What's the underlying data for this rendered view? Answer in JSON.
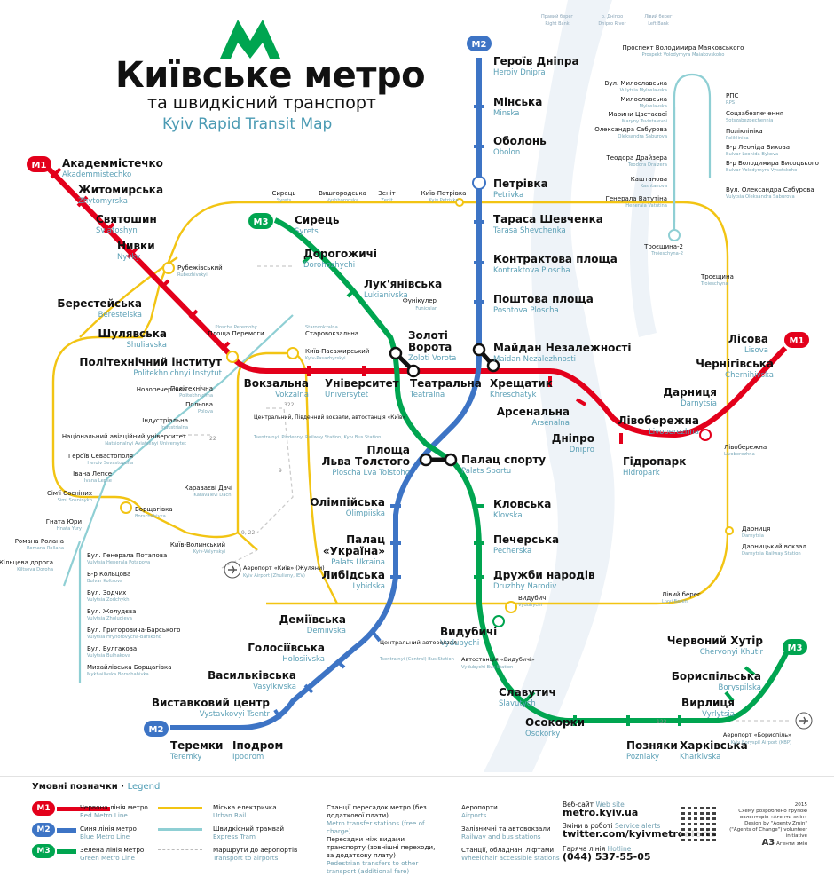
{
  "title": {
    "main": "Київське метро",
    "sub": "та швидкісний транспорт",
    "en": "Kyiv Rapid Transit Map"
  },
  "river": {
    "right_bank": "Правий берег",
    "right_bank_en": "Right Bank",
    "dnipro": "р. Дніпро",
    "dnipro_en": "Dnipro River",
    "left_bank": "Лівий берег",
    "left_bank_en": "Left Bank"
  },
  "colors": {
    "red": "#e3001b",
    "blue": "#3d74c5",
    "green": "#00a550",
    "yellow": "#f2c413",
    "tram": "#8fcfd4",
    "grey": "#bdbdbd"
  },
  "lines": {
    "m1": {
      "badge": "M1"
    },
    "m2": {
      "badge": "M2"
    },
    "m3": {
      "badge": "M3"
    }
  },
  "m1_stations": [
    {
      "ua": "Академмістечко",
      "en": "Akademmistechko"
    },
    {
      "ua": "Житомирська",
      "en": "Zhytomyrska"
    },
    {
      "ua": "Святошин",
      "en": "Sviatoshyn"
    },
    {
      "ua": "Нивки",
      "en": "Nyvky"
    },
    {
      "ua": "Берестейська",
      "en": "Beresteiska"
    },
    {
      "ua": "Шулявська",
      "en": "Shuliavska"
    },
    {
      "ua": "Політехнічний інститут",
      "en": "Politekhnichnyi Instytut"
    },
    {
      "ua": "Вокзальна",
      "en": "Vokzalna"
    },
    {
      "ua": "Університет",
      "en": "Universytet"
    },
    {
      "ua": "Театральна",
      "en": "Teatralna"
    },
    {
      "ua": "Хрещатик",
      "en": "Khreschatyk"
    },
    {
      "ua": "Арсенальна",
      "en": "Arsenalna"
    },
    {
      "ua": "Дніпро",
      "en": "Dnipro"
    },
    {
      "ua": "Гідропарк",
      "en": "Hidropark"
    },
    {
      "ua": "Лівобережна",
      "en": "Livoberezhna"
    },
    {
      "ua": "Дарниця",
      "en": "Darnytsia"
    },
    {
      "ua": "Чернігівська",
      "en": "Chernihivska"
    },
    {
      "ua": "Лісова",
      "en": "Lisova"
    }
  ],
  "m2_stations": [
    {
      "ua": "Героїв Дніпра",
      "en": "Heroiv Dnipra"
    },
    {
      "ua": "Мінська",
      "en": "Minska"
    },
    {
      "ua": "Оболонь",
      "en": "Obolon"
    },
    {
      "ua": "Петрівка",
      "en": "Petrivka"
    },
    {
      "ua": "Тараса Шевченка",
      "en": "Tarasa Shevchenka"
    },
    {
      "ua": "Контрактова площа",
      "en": "Kontraktova Ploscha"
    },
    {
      "ua": "Поштова площа",
      "en": "Poshtova Ploscha"
    },
    {
      "ua": "Майдан Незалежності",
      "en": "Maidan Nezalezhnosti"
    },
    {
      "ua": "Площа",
      "ua2": "Льва Толстого",
      "en": "Ploscha Lva Tolstoho"
    },
    {
      "ua": "Олімпійська",
      "en": "Olimpiiska"
    },
    {
      "ua": "Палац",
      "ua2": "«Україна»",
      "en": "Palats Ukraina"
    },
    {
      "ua": "Либідська",
      "en": "Lybidska"
    },
    {
      "ua": "Деміївська",
      "en": "Demiivska"
    },
    {
      "ua": "Голосіївська",
      "en": "Holosiivska"
    },
    {
      "ua": "Васильківська",
      "en": "Vasylkivska"
    },
    {
      "ua": "Виставковий центр",
      "en": "Vystavkovyi Tsentr"
    },
    {
      "ua": "Іподром",
      "en": "Ipodrom"
    },
    {
      "ua": "Теремки",
      "en": "Teremky"
    }
  ],
  "m3_stations": [
    {
      "ua": "Сирець",
      "en": "Syrets"
    },
    {
      "ua": "Дорогожичі",
      "en": "Dorohozhychi"
    },
    {
      "ua": "Лук'янівська",
      "en": "Lukianivska"
    },
    {
      "ua": "Золоті",
      "ua2": "Ворота",
      "en": "Zoloti Vorota"
    },
    {
      "ua": "Палац спорту",
      "en": "Palats Sportu"
    },
    {
      "ua": "Кловська",
      "en": "Klovska"
    },
    {
      "ua": "Печерська",
      "en": "Pecherska"
    },
    {
      "ua": "Дружби народів",
      "en": "Druzhby Narodiv"
    },
    {
      "ua": "Видубичі",
      "en": "Vydubychi"
    },
    {
      "ua": "Славутич",
      "en": "Slavutych"
    },
    {
      "ua": "Осокорки",
      "en": "Osokorky"
    },
    {
      "ua": "Позняки",
      "en": "Pozniaky"
    },
    {
      "ua": "Харківська",
      "en": "Kharkivska"
    },
    {
      "ua": "Вирлиця",
      "en": "Vyrlytsia"
    },
    {
      "ua": "Бориспільська",
      "en": "Boryspilska"
    },
    {
      "ua": "Червоний Хутір",
      "en": "Chervonyi Khutir"
    }
  ],
  "urban_rail": [
    {
      "ua": "Сирець",
      "en": "Syrets"
    },
    {
      "ua": "Вишгородська",
      "en": "Vyshhorodska"
    },
    {
      "ua": "Зеніт",
      "en": "Zenit"
    },
    {
      "ua": "Київ-Петрівка",
      "en": "Kyiv Petrivka"
    },
    {
      "ua": "Рубежівський",
      "en": "Rubezhivskyi"
    },
    {
      "ua": "Новопечерська",
      "en": ""
    },
    {
      "ua": "Київ-Пасажирський",
      "en": "Kyiv-Pasazhyrskyi"
    },
    {
      "ua": "Караваєві Дачі",
      "en": "Karavaievi Dachi"
    },
    {
      "ua": "Борщагівка",
      "en": "Borschahivka"
    },
    {
      "ua": "Київ-Волинський",
      "en": "Kyiv-Volynskyi"
    },
    {
      "ua": "Троєщина-2",
      "en": "Troieschyna-2"
    },
    {
      "ua": "Троєщина",
      "en": "Troieschyna"
    },
    {
      "ua": "Лівобережна",
      "en": "Livoberezhna"
    },
    {
      "ua": "Дарниця",
      "en": "Darnytsia"
    },
    {
      "ua": "Дарницький вокзал",
      "en": "Darnytsia Railway Station"
    },
    {
      "ua": "Лівий берег",
      "en": "Livyi Bereh"
    },
    {
      "ua": "Видубичі",
      "en": "Vydubychi"
    },
    {
      "ua": "Політехнічна",
      "en": "Politekhnichna"
    },
    {
      "ua": "Польова",
      "en": "Polova"
    },
    {
      "ua": "Індустріальна",
      "en": "Industrialna"
    },
    {
      "ua": "Національний авіаційний університет",
      "en": "Natsionalnyi Aviatsiinyi Universytet"
    },
    {
      "ua": "Героїв Севастополя",
      "en": "Heroiv Sevastopolia"
    },
    {
      "ua": "Івана Лепсе",
      "en": "Ivana Lepse"
    },
    {
      "ua": "Сім'ї Сосніних",
      "en": "Simi Sosninykh"
    },
    {
      "ua": "Гната Юри",
      "en": "Hnata Yury"
    },
    {
      "ua": "Романа Ролана",
      "en": "Romana Rollana"
    },
    {
      "ua": "Кільцева дорога",
      "en": "Kiltseva Doroha"
    }
  ],
  "tram_north": [
    {
      "ua": "Проспект Володимира Маяковського",
      "en": "Prospekt Volodymyra Maiakovskoho"
    },
    {
      "ua": "Вул. Милославська",
      "en": "Vulytsia Myloslavska"
    },
    {
      "ua": "Милославська",
      "en": "Myloslavska"
    },
    {
      "ua": "Марини Цвєтаєвої",
      "en": "Maryny Tsvietaievoi"
    },
    {
      "ua": "Олександра Сабурова",
      "en": "Oleksandra Saburova"
    },
    {
      "ua": "Теодора Драйзера",
      "en": "Teodora Draizera"
    },
    {
      "ua": "Каштанова",
      "en": "Kashtanova"
    },
    {
      "ua": "Генерала Ватутіна",
      "en": "Henerala Vatutina"
    },
    {
      "ua": "РПС",
      "en": "RPS"
    },
    {
      "ua": "Соцзабезпечення",
      "en": "Sotszabezpechennia"
    },
    {
      "ua": "Поліклініка",
      "en": "Poliklinika"
    },
    {
      "ua": "Б-р Леоніда Бикова",
      "en": "Bulvar Leonida Bykova"
    },
    {
      "ua": "Б-р Володимира Висоцького",
      "en": "Bulvar Volodymyra Vysotskoho"
    },
    {
      "ua": "Вул. Олександра Сабурова",
      "en": "Vulytsia Oleksandra Saburova"
    }
  ],
  "tram_south": [
    {
      "ua": "Вул. Генерала Потапова",
      "en": "Vulytsia Henerala Potapova"
    },
    {
      "ua": "Б-р Кольцова",
      "en": "Bulvar Koltsova"
    },
    {
      "ua": "Вул. Зодчих",
      "en": "Vulytsia Zodchykh"
    },
    {
      "ua": "Вул. Жолудєва",
      "en": "Vulytsia Zholudieva"
    },
    {
      "ua": "Вул. Григоровича-Барського",
      "en": "Vulytsia Hryhorovycha-Barskoho"
    },
    {
      "ua": "Вул. Булгакова",
      "en": "Vulytsia Bulhakova"
    },
    {
      "ua": "Михайлівська Борщагівка",
      "en": "Mykhailivska Borschahivka"
    }
  ],
  "misc_labels": {
    "peremohy": "Площа Перемоги",
    "peremohy_en": "Ploscha Peremohy",
    "starovokzalna": "Старовокзальна",
    "starovokzalna_en": "Starovokzalna",
    "funicular": "Фунікулер",
    "funicular_en": "Funicular",
    "rail_stations": "Центральний, Південний вокзали, автостанція «Київ»",
    "rail_stations_en": "Tsentralnyi, Pivdennyi Railway Station, Kyiv Bus Station",
    "airport_zh": "Аеропорт «Київ» (Жуляни)",
    "airport_zh_en": "Kyiv Airport (Zhuliany, IEV)",
    "bus_central": "Центральний автовокзал",
    "bus_central_en": "Tsentralnyi (Central) Bus Station",
    "bus_vydubychi": "Автостанція «Видубичі»",
    "bus_vydubychi_en": "Vydubychi Bus Station",
    "airport_kbp": "Аеропорт «Бориспіль»",
    "airport_kbp_en": "Kyiv Boryspil Airport (KBP)",
    "bus_322": "322",
    "bus_9": "9",
    "bus_22": "22",
    "bus_9_22": "9, 22",
    "bus_122": "122"
  },
  "legend": {
    "heading": "Умовні позначки",
    "heading_en": "Legend",
    "red": "Червона лінія метро",
    "red_en": "Red Metro Line",
    "blue": "Синя лінія метро",
    "blue_en": "Blue Metro Line",
    "green": "Зелена лінія метро",
    "green_en": "Green Metro Line",
    "rail": "Міська електричка",
    "rail_en": "Urban Rail",
    "tram": "Швидкісний трамвай",
    "tram_en": "Express Tram",
    "bus": "Маршрути до аеропортів",
    "bus_en": "Transport to airports",
    "transfer": "Станції пересадок метро (без додаткової плати)",
    "transfer_en": "Metro transfer stations (free of charge)",
    "ped": "Пересадки між видами транспорту (зовнішні переходи, за додаткову плату)",
    "ped_en": "Pedestrian transfers to other transport (additional fare)",
    "airports": "Аеропорти",
    "airports_en": "Airports",
    "railbus": "Залізничні та автовокзали",
    "railbus_en": "Railway and bus stations",
    "wheel": "Станції, обладнані ліфтами",
    "wheel_en": "Wheelchair accessible stations"
  },
  "contacts": {
    "web_label": "Веб-сайт",
    "web_label_en": "Web site",
    "web": "metro.kyiv.ua",
    "alerts_label": "Зміни в роботі",
    "alerts_label_en": "Service alerts",
    "alerts": "twitter.com/kyivmetroalerts",
    "hotline_label": "Гаряча лінія",
    "hotline_label_en": "Hotline",
    "hotline": "(044) 537-55-05"
  },
  "credit": {
    "year": "2015",
    "ua": "Схему розроблено групою волонтерів «Агенти змін»",
    "en": "Design by \"Agenty Zmin\" (\"Agents of Change\") volunteer initiative",
    "logo": "A3",
    "logo_sub": "Агенти змін"
  }
}
